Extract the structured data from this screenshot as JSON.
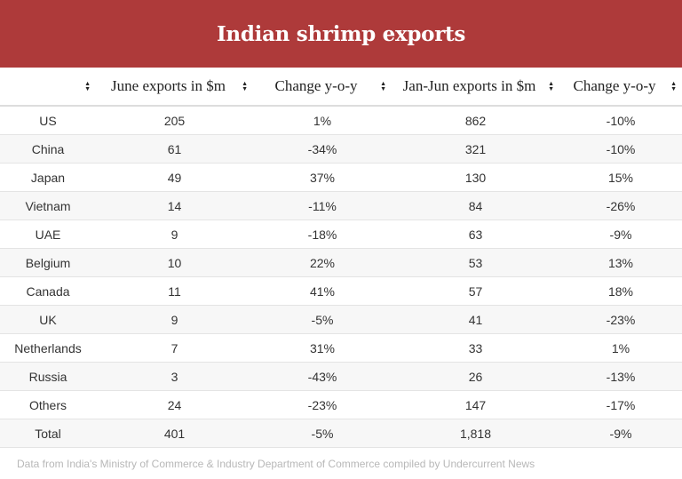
{
  "title": "Indian shrimp exports",
  "chart_data": {
    "type": "table",
    "title": "Indian shrimp exports",
    "columns": [
      "",
      "June exports in $m",
      "Change y-o-y",
      "Jan-Jun exports in $m",
      "Change y-o-y"
    ],
    "rows": [
      [
        "US",
        "205",
        "1%",
        "862",
        "-10%"
      ],
      [
        "China",
        "61",
        "-34%",
        "321",
        "-10%"
      ],
      [
        "Japan",
        "49",
        "37%",
        "130",
        "15%"
      ],
      [
        "Vietnam",
        "14",
        "-11%",
        "84",
        "-26%"
      ],
      [
        "UAE",
        "9",
        "-18%",
        "63",
        "-9%"
      ],
      [
        "Belgium",
        "10",
        "22%",
        "53",
        "13%"
      ],
      [
        "Canada",
        "11",
        "41%",
        "57",
        "18%"
      ],
      [
        "UK",
        "9",
        "-5%",
        "41",
        "-23%"
      ],
      [
        "Netherlands",
        "7",
        "31%",
        "33",
        "1%"
      ],
      [
        "Russia",
        "3",
        "-43%",
        "26",
        "-13%"
      ],
      [
        "Others",
        "24",
        "-23%",
        "147",
        "-17%"
      ],
      [
        "Total",
        "401",
        "-5%",
        "1,818",
        "-9%"
      ]
    ]
  },
  "source": "Data from India's Ministry of Commerce & Industry Department of Commerce compiled by Undercurrent News",
  "colors": {
    "title_bar": "#ae3a3a",
    "stripe": "#f7f7f7"
  },
  "icons": {
    "sort": "sort-arrows-icon"
  }
}
